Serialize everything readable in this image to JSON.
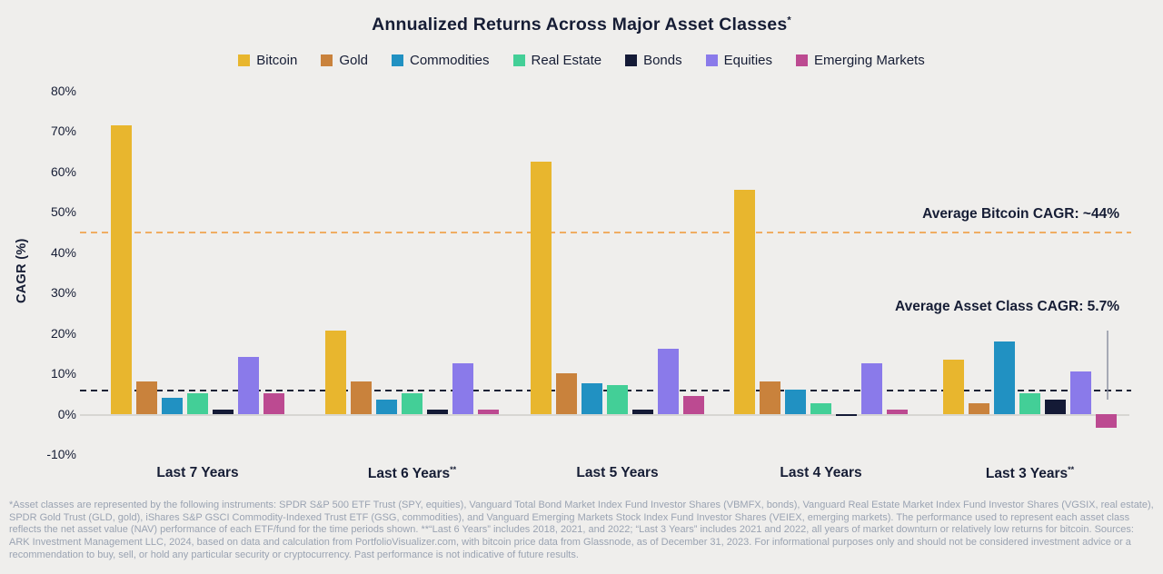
{
  "page": {
    "background": "#efeeec",
    "text_color": "#161d35",
    "footnote_color": "#9aa3b2"
  },
  "chart_data": {
    "type": "bar",
    "title": "Annualized Returns Across Major Asset Classes",
    "title_superscript": "*",
    "ylabel": "CAGR (%)",
    "ylim": [
      -10,
      80
    ],
    "grid": false,
    "legend_position": "top",
    "y_ticks": [
      {
        "value": 80,
        "label": "80%"
      },
      {
        "value": 70,
        "label": "70%"
      },
      {
        "value": 60,
        "label": "60%"
      },
      {
        "value": 50,
        "label": "50%"
      },
      {
        "value": 40,
        "label": "40%"
      },
      {
        "value": 30,
        "label": "30%"
      },
      {
        "value": 20,
        "label": "20%"
      },
      {
        "value": 10,
        "label": "10%"
      },
      {
        "value": 0,
        "label": "0%"
      },
      {
        "value": -10,
        "label": "-10%"
      }
    ],
    "categories": [
      {
        "label": "Last 7 Years",
        "superscript": ""
      },
      {
        "label": "Last 6 Years",
        "superscript": "**"
      },
      {
        "label": "Last 5 Years",
        "superscript": ""
      },
      {
        "label": "Last 4 Years",
        "superscript": ""
      },
      {
        "label": "Last 3 Years",
        "superscript": "**"
      }
    ],
    "series": [
      {
        "name": "Bitcoin",
        "color": "#e8b62e",
        "values": [
          71.5,
          20.5,
          62.5,
          55.5,
          13.5
        ]
      },
      {
        "name": "Gold",
        "color": "#c9823c",
        "values": [
          8,
          8,
          10,
          8,
          2.5
        ]
      },
      {
        "name": "Commodities",
        "color": "#2191c2",
        "values": [
          4,
          3.5,
          7.5,
          6,
          18
        ]
      },
      {
        "name": "Real Estate",
        "color": "#43cf97",
        "values": [
          5,
          5,
          7,
          2.5,
          5
        ]
      },
      {
        "name": "Bonds",
        "color": "#141a36",
        "values": [
          1,
          1,
          1,
          -0.5,
          3.5
        ]
      },
      {
        "name": "Equities",
        "color": "#8a7aea",
        "values": [
          14,
          12.5,
          16,
          12.5,
          10.5
        ]
      },
      {
        "name": "Emerging Markets",
        "color": "#bc4a91",
        "values": [
          5,
          1,
          4.5,
          1,
          -3.5
        ]
      }
    ],
    "reference_lines": [
      {
        "id": "bitcoin-average",
        "label": "Average Bitcoin CAGR: ~44%",
        "value": 45,
        "color": "#f0ad62"
      },
      {
        "id": "asset-class-average",
        "label": "Average Asset Class CAGR: 5.7%",
        "value": 5.7,
        "color": "#1c2336"
      }
    ],
    "range_marker": {
      "category": "Last 3 Years",
      "from": 3.5,
      "to": 20.5,
      "color": "#8e93a3"
    }
  },
  "footnote": "*Asset classes are represented by the following instruments: SPDR S&P 500 ETF Trust (SPY, equities), Vanguard Total Bond Market Index Fund Investor Shares (VBMFX, bonds), Vanguard Real Estate Market Index Fund Investor Shares (VGSIX, real estate), SPDR Gold Trust (GLD, gold), iShares S&P GSCI Commodity-Indexed Trust ETF (GSG, commodities), and Vanguard Emerging Markets Stock Index Fund Investor Shares (VEIEX, emerging markets). The performance used to represent each asset class reflects the net asset value (NAV) performance of each ETF/fund for the time periods shown. **“Last 6 Years” includes 2018, 2021, and 2022; “Last 3 Years” includes 2021 and 2022, all years of market downturn or relatively low returns for bitcoin. Sources: ARK Investment Management LLC, 2024, based on data and calculation from PortfolioVisualizer.com, with bitcoin price data from Glassnode, as of December 31, 2023. For informational purposes only and should not be considered investment advice or a recommendation to buy, sell, or hold any particular security or cryptocurrency. Past performance is not indicative of future results."
}
